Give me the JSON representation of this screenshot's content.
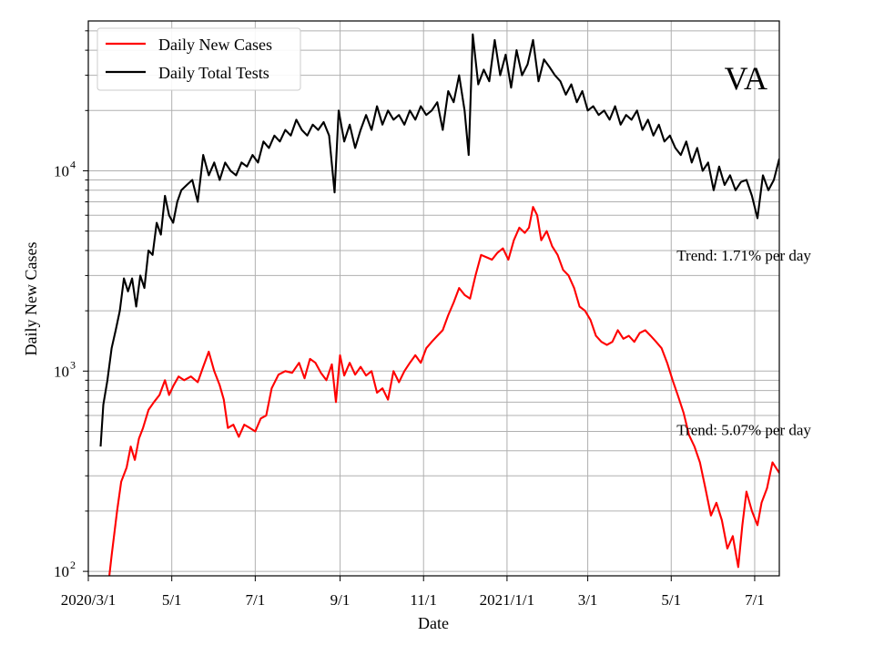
{
  "chart_data": {
    "type": "line",
    "region": "VA",
    "xlabel": "Date",
    "ylabel": "Daily New Cases",
    "x_ticks": [
      "2020/3/1",
      "5/1",
      "7/1",
      "9/1",
      "11/1",
      "2021/1/1",
      "3/1",
      "5/1",
      "7/1"
    ],
    "x_tick_dates": [
      "2020-03-01",
      "2020-05-01",
      "2020-07-01",
      "2020-09-01",
      "2020-11-01",
      "2021-01-01",
      "2021-03-01",
      "2021-05-01",
      "2021-07-01"
    ],
    "xlim": [
      "2020-03-01",
      "2021-07-19"
    ],
    "y_scale": "log",
    "ylim": [
      95,
      56000
    ],
    "y_ticks": [
      {
        "value": 100,
        "base": "10",
        "exp": "2"
      },
      {
        "value": 1000,
        "base": "10",
        "exp": "3"
      },
      {
        "value": 10000,
        "base": "10",
        "exp": "4"
      }
    ],
    "grid": true,
    "legend": "top-left",
    "annotations": [
      {
        "text": "Trend: 1.71% per day",
        "date": "2021-05-05",
        "value": 3800
      },
      {
        "text": "Trend: 5.07% per day",
        "date": "2021-05-05",
        "value": 510
      }
    ],
    "series": [
      {
        "name": "Daily New Cases",
        "color": "#ff0000",
        "points": [
          [
            "2020-03-14",
            68
          ],
          [
            "2020-03-18",
            120
          ],
          [
            "2020-03-22",
            200
          ],
          [
            "2020-03-25",
            280
          ],
          [
            "2020-03-29",
            330
          ],
          [
            "2020-04-01",
            420
          ],
          [
            "2020-04-04",
            360
          ],
          [
            "2020-04-07",
            460
          ],
          [
            "2020-04-10",
            520
          ],
          [
            "2020-04-14",
            640
          ],
          [
            "2020-04-18",
            700
          ],
          [
            "2020-04-22",
            760
          ],
          [
            "2020-04-26",
            900
          ],
          [
            "2020-04-29",
            760
          ],
          [
            "2020-05-02",
            840
          ],
          [
            "2020-05-06",
            940
          ],
          [
            "2020-05-10",
            900
          ],
          [
            "2020-05-15",
            940
          ],
          [
            "2020-05-20",
            880
          ],
          [
            "2020-05-24",
            1050
          ],
          [
            "2020-05-28",
            1250
          ],
          [
            "2020-06-01",
            1000
          ],
          [
            "2020-06-05",
            850
          ],
          [
            "2020-06-08",
            720
          ],
          [
            "2020-06-11",
            520
          ],
          [
            "2020-06-15",
            540
          ],
          [
            "2020-06-19",
            470
          ],
          [
            "2020-06-23",
            540
          ],
          [
            "2020-06-27",
            520
          ],
          [
            "2020-07-01",
            500
          ],
          [
            "2020-07-05",
            580
          ],
          [
            "2020-07-09",
            600
          ],
          [
            "2020-07-13",
            820
          ],
          [
            "2020-07-18",
            960
          ],
          [
            "2020-07-23",
            1000
          ],
          [
            "2020-07-28",
            980
          ],
          [
            "2020-08-02",
            1100
          ],
          [
            "2020-08-06",
            920
          ],
          [
            "2020-08-10",
            1150
          ],
          [
            "2020-08-14",
            1100
          ],
          [
            "2020-08-18",
            980
          ],
          [
            "2020-08-22",
            900
          ],
          [
            "2020-08-26",
            1080
          ],
          [
            "2020-08-29",
            700
          ],
          [
            "2020-09-01",
            1200
          ],
          [
            "2020-09-04",
            950
          ],
          [
            "2020-09-08",
            1100
          ],
          [
            "2020-09-12",
            960
          ],
          [
            "2020-09-16",
            1050
          ],
          [
            "2020-09-20",
            950
          ],
          [
            "2020-09-24",
            1000
          ],
          [
            "2020-09-28",
            780
          ],
          [
            "2020-10-02",
            820
          ],
          [
            "2020-10-06",
            720
          ],
          [
            "2020-10-10",
            1000
          ],
          [
            "2020-10-14",
            880
          ],
          [
            "2020-10-18",
            1000
          ],
          [
            "2020-10-22",
            1100
          ],
          [
            "2020-10-26",
            1200
          ],
          [
            "2020-10-30",
            1100
          ],
          [
            "2020-11-03",
            1300
          ],
          [
            "2020-11-07",
            1400
          ],
          [
            "2020-11-11",
            1500
          ],
          [
            "2020-11-15",
            1600
          ],
          [
            "2020-11-19",
            1900
          ],
          [
            "2020-11-23",
            2200
          ],
          [
            "2020-11-27",
            2600
          ],
          [
            "2020-12-01",
            2400
          ],
          [
            "2020-12-05",
            2300
          ],
          [
            "2020-12-09",
            3000
          ],
          [
            "2020-12-13",
            3800
          ],
          [
            "2020-12-17",
            3700
          ],
          [
            "2020-12-21",
            3600
          ],
          [
            "2020-12-25",
            3900
          ],
          [
            "2020-12-29",
            4100
          ],
          [
            "2021-01-02",
            3600
          ],
          [
            "2021-01-06",
            4500
          ],
          [
            "2021-01-10",
            5200
          ],
          [
            "2021-01-14",
            4900
          ],
          [
            "2021-01-17",
            5200
          ],
          [
            "2021-01-20",
            6600
          ],
          [
            "2021-01-23",
            6000
          ],
          [
            "2021-01-26",
            4500
          ],
          [
            "2021-01-30",
            5000
          ],
          [
            "2021-02-03",
            4200
          ],
          [
            "2021-02-07",
            3800
          ],
          [
            "2021-02-11",
            3200
          ],
          [
            "2021-02-15",
            3000
          ],
          [
            "2021-02-19",
            2600
          ],
          [
            "2021-02-23",
            2100
          ],
          [
            "2021-02-27",
            2000
          ],
          [
            "2021-03-03",
            1800
          ],
          [
            "2021-03-07",
            1500
          ],
          [
            "2021-03-11",
            1400
          ],
          [
            "2021-03-15",
            1350
          ],
          [
            "2021-03-19",
            1400
          ],
          [
            "2021-03-23",
            1600
          ],
          [
            "2021-03-27",
            1450
          ],
          [
            "2021-03-31",
            1500
          ],
          [
            "2021-04-04",
            1400
          ],
          [
            "2021-04-08",
            1550
          ],
          [
            "2021-04-12",
            1600
          ],
          [
            "2021-04-16",
            1500
          ],
          [
            "2021-04-20",
            1400
          ],
          [
            "2021-04-24",
            1300
          ],
          [
            "2021-04-28",
            1100
          ],
          [
            "2021-05-02",
            900
          ],
          [
            "2021-05-06",
            750
          ],
          [
            "2021-05-10",
            620
          ],
          [
            "2021-05-14",
            480
          ],
          [
            "2021-05-18",
            420
          ],
          [
            "2021-05-22",
            350
          ],
          [
            "2021-05-26",
            260
          ],
          [
            "2021-05-30",
            190
          ],
          [
            "2021-06-03",
            220
          ],
          [
            "2021-06-07",
            180
          ],
          [
            "2021-06-11",
            130
          ],
          [
            "2021-06-15",
            150
          ],
          [
            "2021-06-19",
            105
          ],
          [
            "2021-06-22",
            170
          ],
          [
            "2021-06-25",
            250
          ],
          [
            "2021-06-29",
            200
          ],
          [
            "2021-07-03",
            170
          ],
          [
            "2021-07-06",
            220
          ],
          [
            "2021-07-10",
            260
          ],
          [
            "2021-07-14",
            350
          ],
          [
            "2021-07-19",
            310
          ]
        ]
      },
      {
        "name": "Daily Total Tests",
        "color": "#000000",
        "points": [
          [
            "2020-03-10",
            420
          ],
          [
            "2020-03-12",
            680
          ],
          [
            "2020-03-15",
            900
          ],
          [
            "2020-03-18",
            1300
          ],
          [
            "2020-03-21",
            1600
          ],
          [
            "2020-03-24",
            2000
          ],
          [
            "2020-03-27",
            2900
          ],
          [
            "2020-03-30",
            2500
          ],
          [
            "2020-04-02",
            2900
          ],
          [
            "2020-04-05",
            2100
          ],
          [
            "2020-04-08",
            3000
          ],
          [
            "2020-04-11",
            2600
          ],
          [
            "2020-04-14",
            4000
          ],
          [
            "2020-04-17",
            3800
          ],
          [
            "2020-04-20",
            5500
          ],
          [
            "2020-04-23",
            4800
          ],
          [
            "2020-04-26",
            7500
          ],
          [
            "2020-04-29",
            6000
          ],
          [
            "2020-05-02",
            5500
          ],
          [
            "2020-05-05",
            7000
          ],
          [
            "2020-05-08",
            8000
          ],
          [
            "2020-05-12",
            8500
          ],
          [
            "2020-05-16",
            9000
          ],
          [
            "2020-05-20",
            7000
          ],
          [
            "2020-05-24",
            12000
          ],
          [
            "2020-05-28",
            9500
          ],
          [
            "2020-06-01",
            11000
          ],
          [
            "2020-06-05",
            9000
          ],
          [
            "2020-06-09",
            11000
          ],
          [
            "2020-06-13",
            10000
          ],
          [
            "2020-06-17",
            9500
          ],
          [
            "2020-06-21",
            11000
          ],
          [
            "2020-06-25",
            10500
          ],
          [
            "2020-06-29",
            12000
          ],
          [
            "2020-07-03",
            11000
          ],
          [
            "2020-07-07",
            14000
          ],
          [
            "2020-07-11",
            13000
          ],
          [
            "2020-07-15",
            15000
          ],
          [
            "2020-07-19",
            14000
          ],
          [
            "2020-07-23",
            16000
          ],
          [
            "2020-07-27",
            15000
          ],
          [
            "2020-07-31",
            18000
          ],
          [
            "2020-08-04",
            16000
          ],
          [
            "2020-08-08",
            15000
          ],
          [
            "2020-08-12",
            17000
          ],
          [
            "2020-08-16",
            16000
          ],
          [
            "2020-08-20",
            17500
          ],
          [
            "2020-08-24",
            15000
          ],
          [
            "2020-08-28",
            7800
          ],
          [
            "2020-08-31",
            20000
          ],
          [
            "2020-09-04",
            14000
          ],
          [
            "2020-09-08",
            17000
          ],
          [
            "2020-09-12",
            13000
          ],
          [
            "2020-09-16",
            16000
          ],
          [
            "2020-09-20",
            19000
          ],
          [
            "2020-09-24",
            16000
          ],
          [
            "2020-09-28",
            21000
          ],
          [
            "2020-10-02",
            17000
          ],
          [
            "2020-10-06",
            20000
          ],
          [
            "2020-10-10",
            18000
          ],
          [
            "2020-10-14",
            19000
          ],
          [
            "2020-10-18",
            17000
          ],
          [
            "2020-10-22",
            20000
          ],
          [
            "2020-10-26",
            18000
          ],
          [
            "2020-10-30",
            21000
          ],
          [
            "2020-11-03",
            19000
          ],
          [
            "2020-11-07",
            20000
          ],
          [
            "2020-11-11",
            22000
          ],
          [
            "2020-11-15",
            16000
          ],
          [
            "2020-11-19",
            25000
          ],
          [
            "2020-11-23",
            22000
          ],
          [
            "2020-11-27",
            30000
          ],
          [
            "2020-12-01",
            20000
          ],
          [
            "2020-12-04",
            12000
          ],
          [
            "2020-12-07",
            48000
          ],
          [
            "2020-12-11",
            27000
          ],
          [
            "2020-12-15",
            32000
          ],
          [
            "2020-12-19",
            28000
          ],
          [
            "2020-12-23",
            45000
          ],
          [
            "2020-12-27",
            30000
          ],
          [
            "2020-12-31",
            38000
          ],
          [
            "2021-01-04",
            26000
          ],
          [
            "2021-01-08",
            40000
          ],
          [
            "2021-01-12",
            30000
          ],
          [
            "2021-01-16",
            34000
          ],
          [
            "2021-01-20",
            45000
          ],
          [
            "2021-01-24",
            28000
          ],
          [
            "2021-01-28",
            36000
          ],
          [
            "2021-02-01",
            33000
          ],
          [
            "2021-02-05",
            30000
          ],
          [
            "2021-02-09",
            28000
          ],
          [
            "2021-02-13",
            24000
          ],
          [
            "2021-02-17",
            27000
          ],
          [
            "2021-02-21",
            22000
          ],
          [
            "2021-02-25",
            25000
          ],
          [
            "2021-03-01",
            20000
          ],
          [
            "2021-03-05",
            21000
          ],
          [
            "2021-03-09",
            19000
          ],
          [
            "2021-03-13",
            20000
          ],
          [
            "2021-03-17",
            18000
          ],
          [
            "2021-03-21",
            21000
          ],
          [
            "2021-03-25",
            17000
          ],
          [
            "2021-03-29",
            19000
          ],
          [
            "2021-04-02",
            18000
          ],
          [
            "2021-04-06",
            20000
          ],
          [
            "2021-04-10",
            16000
          ],
          [
            "2021-04-14",
            18000
          ],
          [
            "2021-04-18",
            15000
          ],
          [
            "2021-04-22",
            17000
          ],
          [
            "2021-04-26",
            14000
          ],
          [
            "2021-04-30",
            15000
          ],
          [
            "2021-05-04",
            13000
          ],
          [
            "2021-05-08",
            12000
          ],
          [
            "2021-05-12",
            14000
          ],
          [
            "2021-05-16",
            11000
          ],
          [
            "2021-05-20",
            13000
          ],
          [
            "2021-05-24",
            10000
          ],
          [
            "2021-05-28",
            11000
          ],
          [
            "2021-06-01",
            8000
          ],
          [
            "2021-06-05",
            10500
          ],
          [
            "2021-06-09",
            8500
          ],
          [
            "2021-06-13",
            9500
          ],
          [
            "2021-06-17",
            8000
          ],
          [
            "2021-06-21",
            8800
          ],
          [
            "2021-06-25",
            9000
          ],
          [
            "2021-06-29",
            7500
          ],
          [
            "2021-07-03",
            5800
          ],
          [
            "2021-07-07",
            9500
          ],
          [
            "2021-07-11",
            8000
          ],
          [
            "2021-07-15",
            9000
          ],
          [
            "2021-07-19",
            11500
          ]
        ]
      }
    ]
  }
}
